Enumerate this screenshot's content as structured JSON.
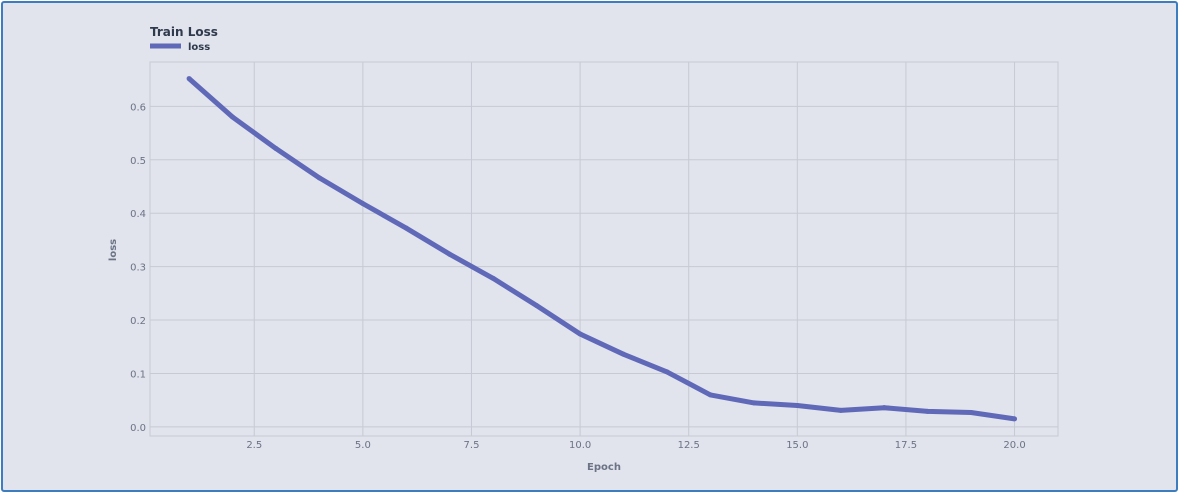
{
  "chart_data": {
    "type": "line",
    "title": "Train Loss",
    "xlabel": "Epoch",
    "ylabel": "loss",
    "xlim": [
      0.1,
      21.0
    ],
    "ylim": [
      -0.017,
      0.683
    ],
    "xticks": [
      2.5,
      5.0,
      7.5,
      10.0,
      12.5,
      15.0,
      17.5,
      20.0
    ],
    "xtick_labels": [
      "2.5",
      "5.0",
      "7.5",
      "10.0",
      "12.5",
      "15.0",
      "17.5",
      "20.0"
    ],
    "yticks": [
      0.0,
      0.1,
      0.2,
      0.3,
      0.4,
      0.5,
      0.6
    ],
    "ytick_labels": [
      "0.0",
      "0.1",
      "0.2",
      "0.3",
      "0.4",
      "0.5",
      "0.6"
    ],
    "grid": true,
    "legend_position": "top-left",
    "series": [
      {
        "name": "loss",
        "color": "#5f69b8",
        "x": [
          1,
          2,
          3,
          4,
          5,
          6,
          7,
          8,
          9,
          10,
          11,
          12,
          13,
          14,
          15,
          16,
          17,
          18,
          19,
          20
        ],
        "y": [
          0.652,
          0.58,
          0.521,
          0.466,
          0.418,
          0.372,
          0.323,
          0.278,
          0.227,
          0.174,
          0.136,
          0.103,
          0.06,
          0.045,
          0.04,
          0.031,
          0.036,
          0.029,
          0.027,
          0.015
        ]
      }
    ]
  },
  "colors": {
    "background": "#e1e3ed",
    "border": "#3c7dc0",
    "grid": "#c7c9d3"
  }
}
